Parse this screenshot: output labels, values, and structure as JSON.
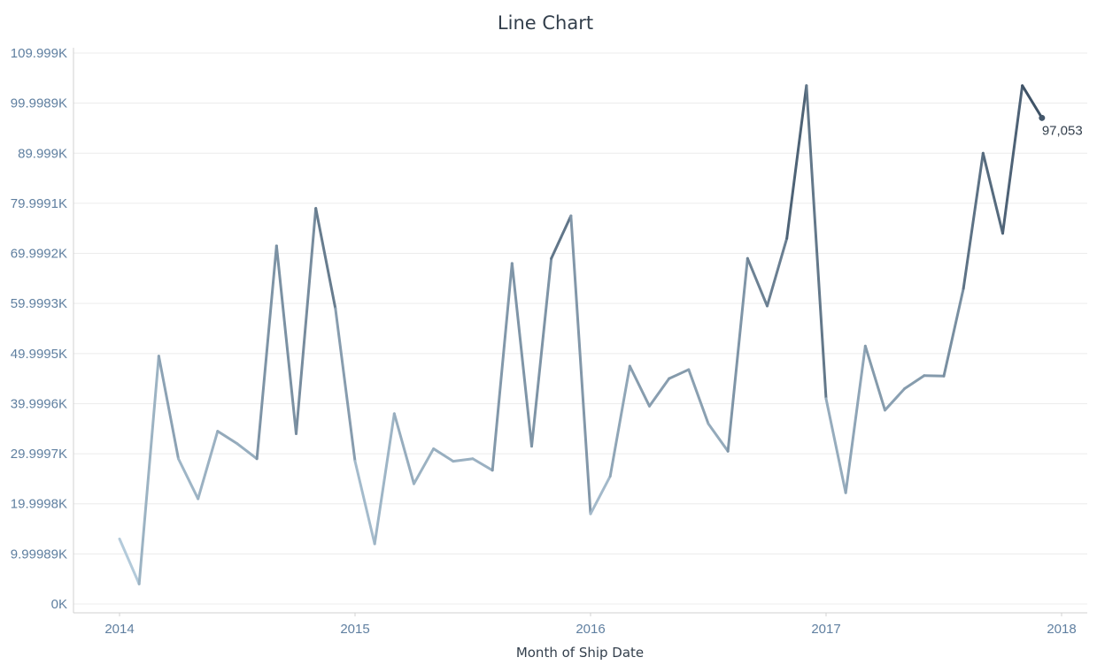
{
  "chart_data": {
    "type": "line",
    "title": "Line Chart",
    "xlabel": "Month of Ship Date",
    "ylabel": "",
    "x_ticks": [
      "2014",
      "2015",
      "2016",
      "2017",
      "2018"
    ],
    "y_ticks": [
      "0K",
      "9.99989K",
      "19.9998K",
      "29.9997K",
      "39.9996K",
      "49.9995K",
      "59.9993K",
      "69.9992K",
      "79.9991K",
      "89.999K",
      "99.9989K",
      "109.999K"
    ],
    "ylim": [
      0,
      109999
    ],
    "grid": true,
    "color_light": "#b9d0e0",
    "color_dark": "#3b4f63",
    "series": [
      {
        "x_start": "2014-01",
        "values": [
          13000,
          4000,
          49500,
          29000,
          21000,
          34500,
          32000,
          29000,
          71500,
          34000,
          79000,
          59000,
          28500,
          12000,
          38000,
          24000,
          31000,
          28500,
          29000,
          26700,
          68000,
          31500,
          69000,
          77500,
          18000,
          25500,
          47500,
          39500,
          45000,
          46800,
          36000,
          30500,
          69000,
          59500,
          73000,
          103500,
          41000,
          22200,
          51500,
          38700,
          43000,
          45600,
          45500,
          63000,
          90000,
          74000,
          103500,
          97053
        ]
      }
    ],
    "annotations": [
      {
        "month_index": 47,
        "label": "97,053"
      }
    ]
  }
}
